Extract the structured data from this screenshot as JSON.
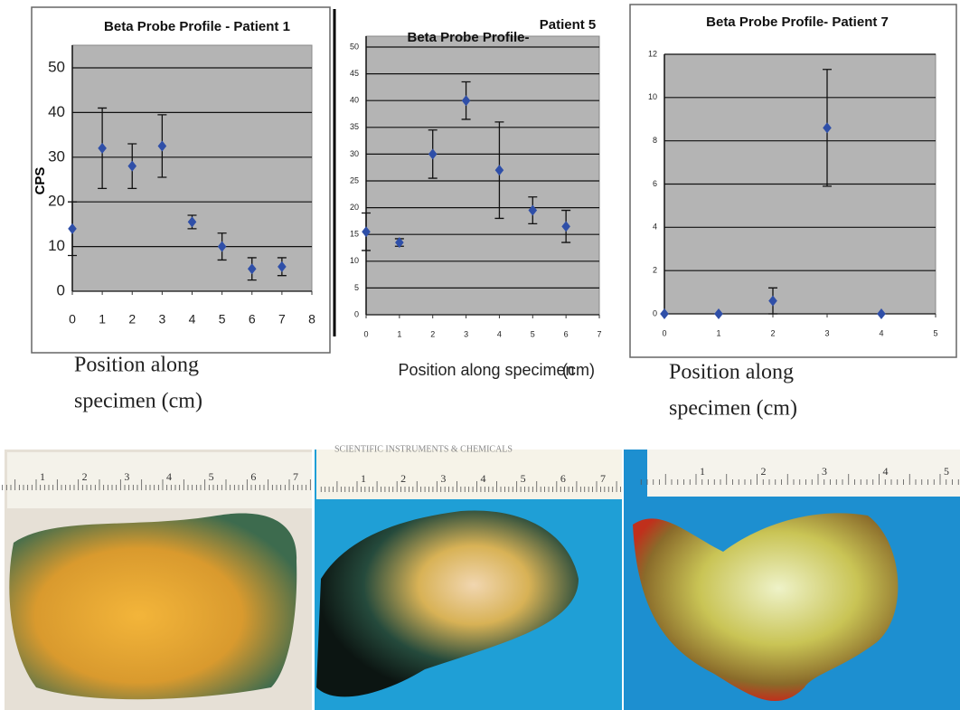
{
  "chart_data": [
    {
      "type": "scatter",
      "title": "Beta Probe Profile - Patient 1",
      "y_label": "CPS",
      "x_label": [
        "Position along",
        "specimen (cm)"
      ],
      "x": [
        0,
        1,
        2,
        3,
        4,
        5,
        6,
        7
      ],
      "values": [
        14,
        32,
        28,
        32.5,
        15.5,
        10,
        5,
        5.5
      ],
      "errors": [
        6,
        9,
        5,
        7,
        1.5,
        3,
        2.5,
        2
      ],
      "color": "#2f4fa8",
      "xlim": [
        0,
        8
      ],
      "xticks": [
        0,
        1,
        2,
        3,
        4,
        5,
        6,
        7,
        8
      ],
      "ylim": [
        0,
        50
      ],
      "yticks": [
        0,
        10,
        20,
        30,
        40,
        50
      ],
      "grid": true
    },
    {
      "type": "scatter",
      "title": "Beta Probe Profile-",
      "subtitle": "Patient 5",
      "x_label": [
        "Position along specimen",
        "(cm)"
      ],
      "x": [
        0,
        1,
        2,
        3,
        4,
        5,
        6
      ],
      "values": [
        15.5,
        13.5,
        30,
        40,
        27,
        19.5,
        16.5
      ],
      "errors": [
        3.5,
        0.7,
        4.5,
        3.5,
        9,
        2.5,
        3
      ],
      "color": "#2f4fa8",
      "xlim": [
        0,
        7
      ],
      "xticks": [
        0,
        1,
        2,
        3,
        4,
        5,
        6,
        7
      ],
      "ylim": [
        0,
        50
      ],
      "yticks": [
        0,
        5,
        10,
        15,
        20,
        25,
        30,
        35,
        40,
        45,
        50
      ],
      "grid": true
    },
    {
      "type": "scatter",
      "title": "Beta Probe Profile- Patient 7",
      "x_label": [
        "Position along",
        "specimen (cm)"
      ],
      "x": [
        0,
        1,
        2,
        3,
        4
      ],
      "values": [
        0,
        0,
        0.6,
        8.6,
        0
      ],
      "errors": [
        null,
        null,
        0.6,
        2.7,
        null
      ],
      "color": "#2f4fa8",
      "xlim": [
        0,
        5
      ],
      "xticks": [
        0,
        1,
        2,
        3,
        4,
        5
      ],
      "ylim": [
        0,
        12
      ],
      "yticks": [
        0,
        2,
        4,
        6,
        8,
        10,
        12
      ],
      "grid": true
    }
  ],
  "photos": [
    {
      "ruler_labels": [
        "1",
        "2",
        "3",
        "4",
        "5",
        "6",
        "7"
      ]
    },
    {
      "caption": "SCIENTIFIC INSTRUMENTS & CHEMICALS",
      "ruler_labels": [
        "1",
        "2",
        "3",
        "4",
        "5",
        "6",
        "7"
      ]
    },
    {
      "ruler_labels": [
        "1",
        "2",
        "3",
        "4",
        "5"
      ]
    }
  ]
}
